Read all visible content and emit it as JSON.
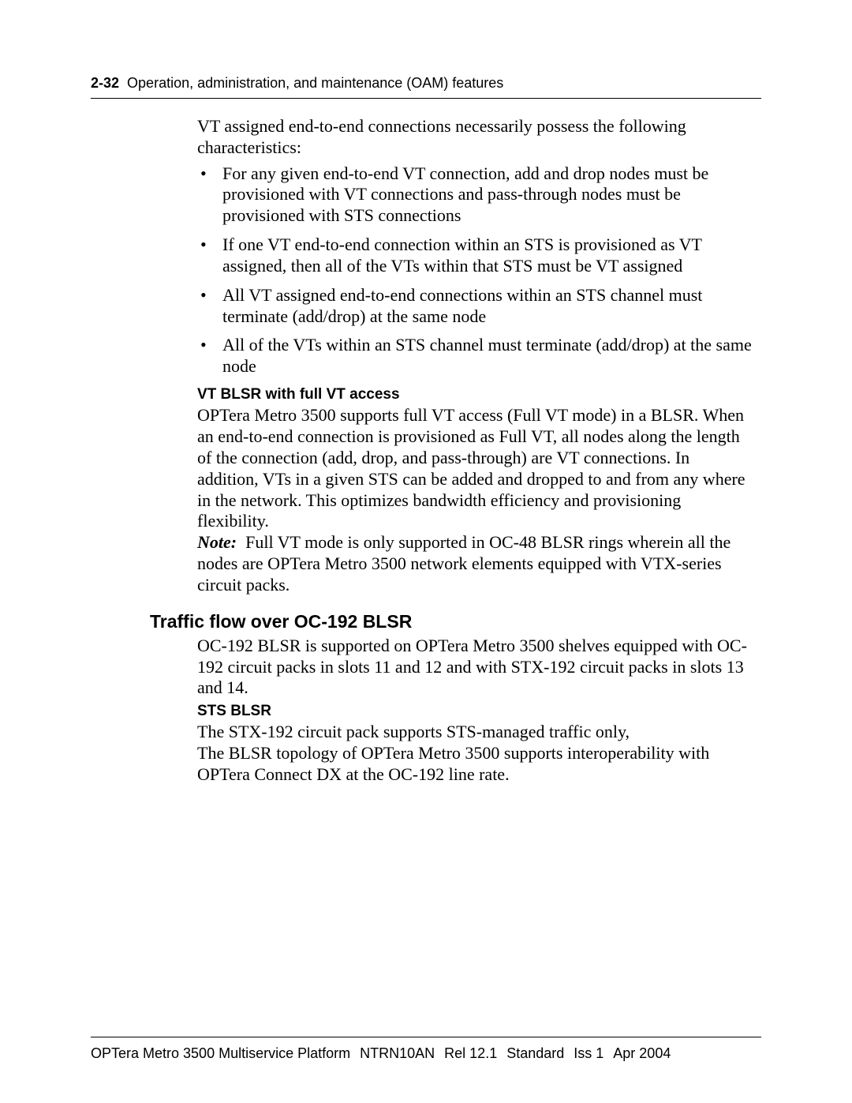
{
  "header": {
    "page_number": "2-32",
    "title": "Operation, administration, and maintenance (OAM) features"
  },
  "intro_paragraph": "VT assigned end-to-end connections necessarily possess the following characteristics:",
  "bullets": [
    "For any given end-to-end VT connection, add and drop nodes must be provisioned with VT connections and pass-through nodes must be provisioned with STS connections",
    "If one VT end-to-end connection within an STS is provisioned as VT assigned, then all of the VTs within that STS must be VT assigned",
    "All VT assigned end-to-end connections within an STS channel must terminate (add/drop) at the same node",
    "All of the VTs within an STS channel must terminate (add/drop) at the same node"
  ],
  "vt_blsr": {
    "heading": "VT BLSR with full VT access",
    "body": "OPTera Metro 3500 supports full VT access (Full VT mode) in a BLSR. When an end-to-end connection is provisioned as Full VT, all nodes along the length of the connection (add, drop, and pass-through) are VT connections. In addition, VTs in a given STS can be added and dropped to and from any where in the network. This optimizes bandwidth efficiency and provisioning flexibility.",
    "note_label": "Note:",
    "note_body": "Full VT mode is only supported in OC-48 BLSR rings wherein all the nodes are OPTera Metro 3500 network elements equipped with VTX-series circuit packs."
  },
  "traffic_section": {
    "heading": "Traffic flow over OC-192 BLSR",
    "intro": "OC-192 BLSR is supported on OPTera Metro 3500 shelves equipped with OC-192 circuit packs in slots 11 and 12 and with STX-192 circuit packs in slots 13 and 14.",
    "sts_heading": "STS BLSR",
    "sts_body_1": "The STX-192 circuit pack supports STS-managed traffic only,",
    "sts_body_2": "The BLSR topology of OPTera Metro 3500 supports interoperability with OPTera Connect DX at the OC-192 line rate."
  },
  "footer": {
    "product": "OPTera Metro 3500 Multiservice Platform",
    "doc_id": "NTRN10AN",
    "release": "Rel 12.1",
    "status": "Standard",
    "issue": "Iss 1",
    "date": "Apr 2004"
  }
}
